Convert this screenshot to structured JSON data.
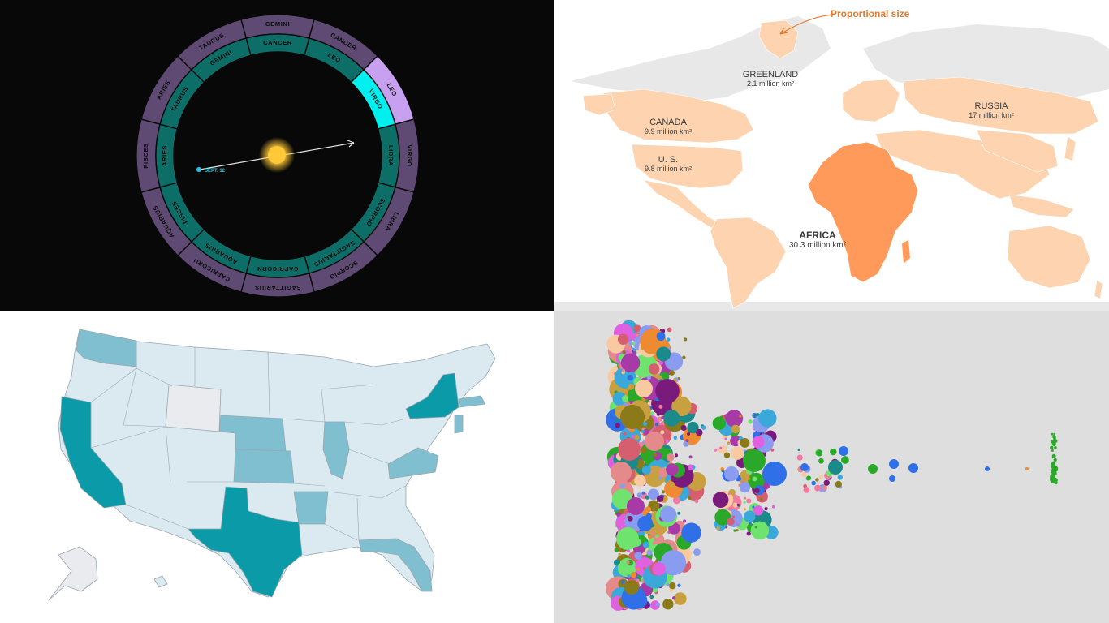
{
  "zodiac": {
    "outer_signs": [
      "GEMINI",
      "CANCER",
      "LEO",
      "VIRGO",
      "LIBRA",
      "SCORPIO",
      "SAGITTARIUS",
      "CAPRICORN",
      "AQUARIUS",
      "PISCES",
      "ARIES",
      "TAURUS"
    ],
    "inner_signs": [
      "CANCER",
      "LEO",
      "VIRGO",
      "LIBRA",
      "SCORPIO",
      "SAGITTARIUS",
      "CAPRICORN",
      "AQUARIUS",
      "PISCES",
      "ARIES",
      "TAURUS",
      "GEMINI"
    ],
    "highlight_outer": "LEO",
    "highlight_inner": "VIRGO",
    "date_label": "SEPT. 12",
    "colors": {
      "outer": "#5e4a72",
      "outer_highlight": "#c8a0f0",
      "inner": "#0d6e68",
      "inner_highlight": "#00f0f0",
      "sun": "#ffc838",
      "marker": "#1ec8e6"
    }
  },
  "world_map": {
    "callout": "Proportional size",
    "labels": [
      {
        "name": "GREENLAND",
        "value": "2.1 million km²"
      },
      {
        "name": "RUSSIA",
        "value": "17 million km²"
      },
      {
        "name": "CANADA",
        "value": "9.9 million km²"
      },
      {
        "name": "U. S.",
        "value": "9.8 million km²"
      },
      {
        "name": "AFRICA",
        "value": "30.3 million km²"
      }
    ],
    "colors": {
      "land": "#e8e8e8",
      "highlight": "#fdd3b0",
      "africa": "#ff9a5a",
      "callout": "#e07a30"
    }
  },
  "us_map": {
    "colors": {
      "light": "#dbeaf0",
      "medium": "#7fbfcf",
      "dark": "#0a9aa8",
      "none": "#e9ebee",
      "border": "#9aa6b0"
    },
    "dark_states": [
      "California",
      "Texas",
      "New York"
    ],
    "medium_states": [
      "Washington",
      "Nebraska",
      "Kansas",
      "Illinois",
      "Arkansas",
      "Virginia",
      "Florida",
      "Massachusetts",
      "New Jersey"
    ],
    "no_data_states": [
      "Wyoming",
      "Alaska"
    ]
  },
  "bubble_chart": {
    "colors": [
      "#8b7a1a",
      "#f9c9a0",
      "#e58a8a",
      "#d65f6f",
      "#a83aa8",
      "#6ee36e",
      "#ee8a30",
      "#2f6fe8",
      "#8a9cf0",
      "#e060e0",
      "#c8a040",
      "#1a8a8a",
      "#2aa82a",
      "#7a1a7a",
      "#f07aa0",
      "#3aa8d8"
    ]
  }
}
